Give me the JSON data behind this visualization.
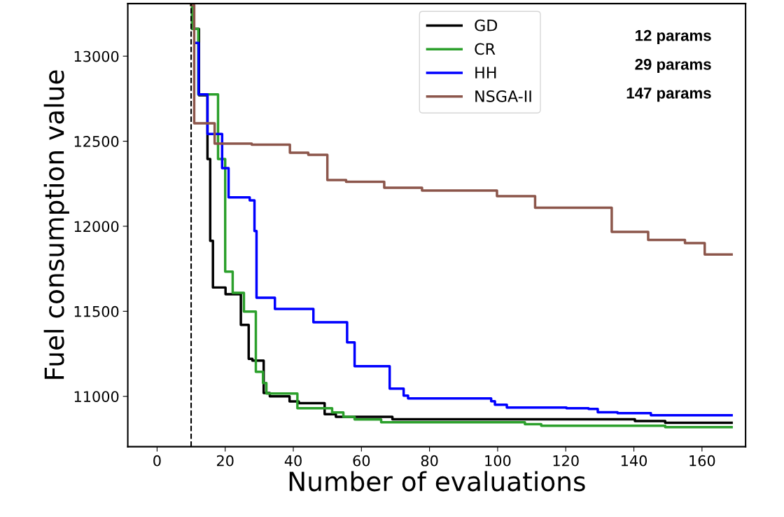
{
  "chart_data": {
    "type": "step",
    "xlabel": "Number of evaluations",
    "ylabel": "Fuel consumption value",
    "xlim": [
      -8.6,
      172.8
    ],
    "ylim": [
      10704,
      13309
    ],
    "xticks": [
      0,
      20,
      40,
      60,
      80,
      100,
      120,
      140,
      160
    ],
    "yticks": [
      11000,
      11500,
      12000,
      12500,
      13000
    ],
    "grid": false,
    "legend": "top",
    "line_style": "solid",
    "marker": "none",
    "annotations": [
      "12 params",
      "29 params",
      "147 params"
    ],
    "ref_lines": [
      {
        "axis": "x",
        "value": 10,
        "label": null,
        "color": "#000000",
        "line_style": "dashed"
      }
    ],
    "series": [
      {
        "name": "GD",
        "color": "#000000",
        "x": [
          10,
          10.3,
          12.3,
          14.8,
          15.6,
          16.4,
          20.1,
          24.6,
          26.9,
          28,
          31.3,
          33.1,
          38.9,
          41.6,
          49.2,
          52.5,
          69.1,
          140.3,
          149.2,
          168.7
        ],
        "values": [
          13300,
          13160,
          12770,
          12395,
          11914,
          11640,
          11600,
          11420,
          11220,
          11210,
          11020,
          11000,
          10970,
          10960,
          10895,
          10880,
          10865,
          10855,
          10845,
          10845
        ]
      },
      {
        "name": "CR",
        "color": "#2ca02c",
        "x": [
          10,
          10.3,
          12.1,
          17.9,
          20,
          22.2,
          25.5,
          29,
          31.1,
          32.1,
          41.2,
          51.4,
          54.7,
          58,
          65.8,
          108,
          112.8,
          149.2,
          168.7
        ],
        "values": [
          13300,
          13160,
          12775,
          12395,
          11733,
          11609,
          11498,
          11144,
          11078,
          11017,
          10930,
          10905,
          10880,
          10864,
          10848,
          10836,
          10827,
          10819,
          10819
        ]
      },
      {
        "name": "HH",
        "color": "#0000ff",
        "x": [
          11.5,
          12.2,
          14.8,
          19.1,
          21,
          27.2,
          28.6,
          29.2,
          34.6,
          45.9,
          55.8,
          58,
          68.3,
          72.4,
          73.7,
          98.1,
          99.2,
          102.7,
          120.2,
          126.7,
          129.4,
          135.2,
          145,
          168.7
        ],
        "values": [
          13078,
          12775,
          12543,
          12342,
          12170,
          12152,
          11972,
          11580,
          11514,
          11436,
          11317,
          11177,
          11045,
          11004,
          10988,
          10971,
          10951,
          10934,
          10930,
          10926,
          10906,
          10901,
          10889,
          10889
        ]
      },
      {
        "name": "NSGA-II",
        "color": "#8c564b",
        "x": [
          10,
          10.9,
          16.9,
          27.8,
          39,
          44.4,
          50,
          55.5,
          66.7,
          77.8,
          99.8,
          111,
          133.5,
          144.2,
          155,
          160.8,
          168.7
        ],
        "values": [
          13300,
          12605,
          12486,
          12480,
          12432,
          12420,
          12272,
          12261,
          12226,
          12210,
          12177,
          12109,
          11967,
          11920,
          11901,
          11834,
          11834
        ]
      }
    ]
  }
}
